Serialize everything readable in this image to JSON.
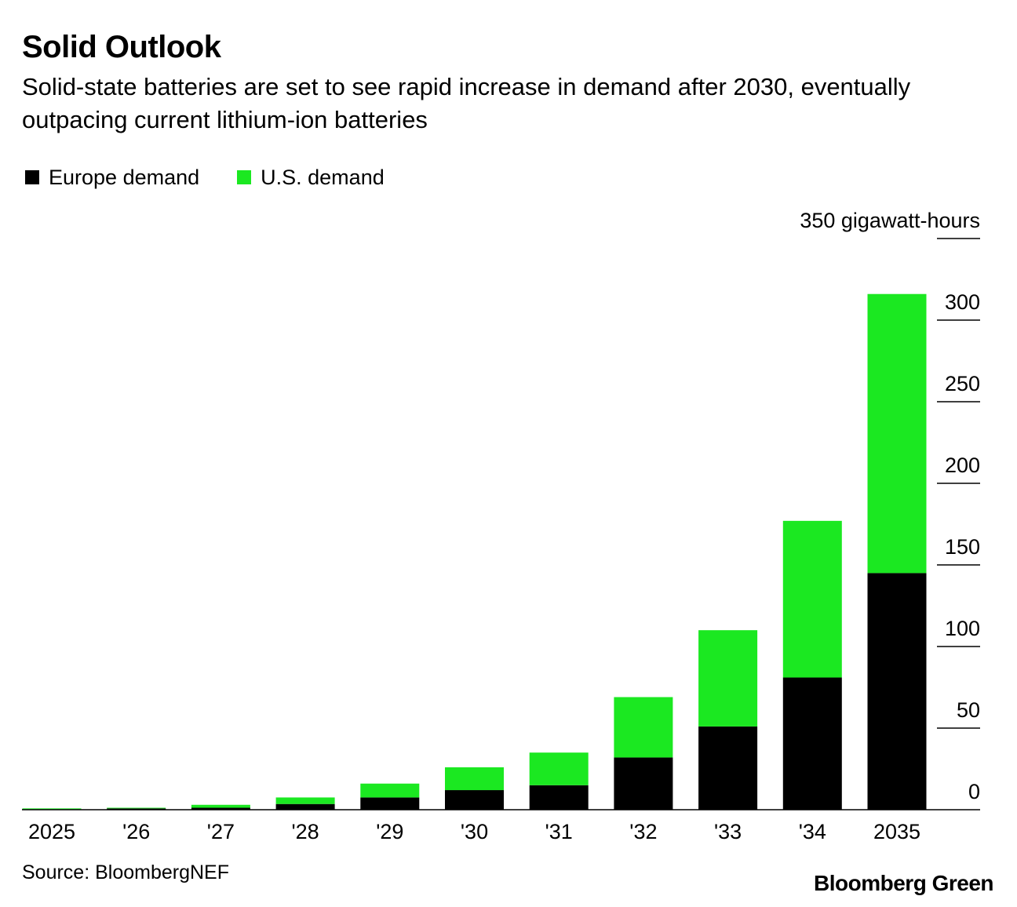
{
  "chart_data": {
    "type": "bar",
    "stacked": true,
    "title": "Solid Outlook",
    "subtitle": "Solid-state batteries are set to see rapid increase in demand after 2030, eventually outpacing current lithium-ion batteries",
    "unit_label": "gigawatt-hours",
    "categories": [
      "2025",
      "'26",
      "'27",
      "'28",
      "'29",
      "'30",
      "'31",
      "'32",
      "'33",
      "'34",
      "2035"
    ],
    "series": [
      {
        "name": "Europe demand",
        "color": "#000000",
        "values": [
          0.3,
          0.8,
          1.2,
          3.5,
          7.5,
          12,
          15,
          32,
          51,
          81,
          145
        ]
      },
      {
        "name": "U.S. demand",
        "color": "#1be821",
        "values": [
          0.5,
          0.4,
          1.8,
          4,
          8.5,
          14,
          20,
          37,
          59,
          96,
          171
        ]
      }
    ],
    "ylim": [
      0,
      350
    ],
    "yticks": [
      0,
      50,
      100,
      150,
      200,
      250,
      300,
      350
    ],
    "y_axis_side": "right",
    "legend_position": "top-left",
    "source": "Source: BloombergNEF",
    "brand": "Bloomberg Green"
  }
}
